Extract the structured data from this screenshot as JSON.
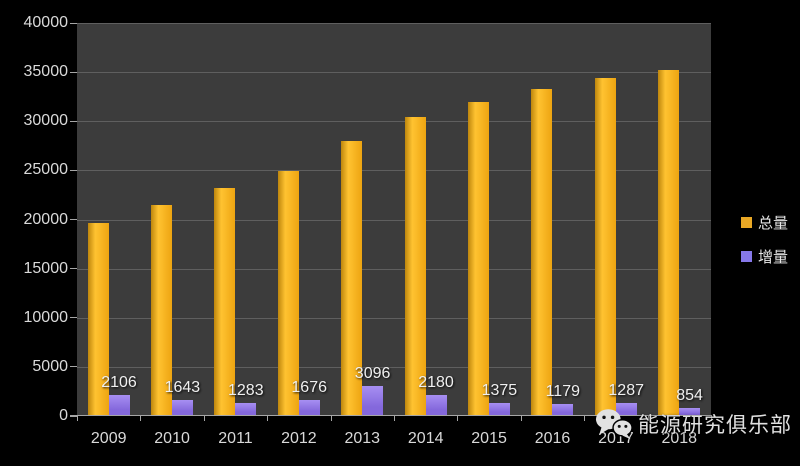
{
  "chart_data": {
    "type": "bar",
    "title": "",
    "categories": [
      "2009",
      "2010",
      "2011",
      "2012",
      "2013",
      "2014",
      "2015",
      "2016",
      "2017",
      "2018"
    ],
    "series": [
      {
        "name": "总量",
        "values": [
          19600,
          21500,
          23200,
          24900,
          28000,
          30400,
          32000,
          33300,
          34400,
          35250
        ],
        "color": "#EDA411",
        "color_light": "#FFC331",
        "color_dark": "#BE860D"
      },
      {
        "name": "增量",
        "values": [
          2106,
          1643,
          1283,
          1676,
          3096,
          2180,
          1375,
          1179,
          1287,
          854
        ],
        "color": "#8468DC",
        "color_light": "#A78FF2"
      }
    ],
    "value_labels": [
      "2106",
      "1643",
      "1283",
      "1676",
      "3096",
      "2180",
      "1375",
      "1179",
      "1287",
      "854"
    ],
    "value_labels_on_series": "增量",
    "xlabel": "",
    "ylabel": "",
    "ylim": [
      0,
      40000
    ],
    "ytick_step": 5000,
    "yticks": [
      0,
      5000,
      10000,
      15000,
      20000,
      25000,
      30000,
      35000,
      40000
    ],
    "grid": "horizontal",
    "legend_position": "right"
  },
  "legend": {
    "items": [
      {
        "label": "总量",
        "color": "#E9A825"
      },
      {
        "label": "增量",
        "color": "#8678E9"
      }
    ]
  },
  "watermark": {
    "text": "能源研究俱乐部",
    "icon": "wechat-icon"
  },
  "colors": {
    "background": "#000000",
    "plot_bg": "#3C3C3C",
    "grid": "#5F5F5F",
    "axis": "#A6A6A6",
    "label": "#D9D9D9",
    "value_label": "#F0F0F0",
    "watermark": "#E0E0E0"
  }
}
